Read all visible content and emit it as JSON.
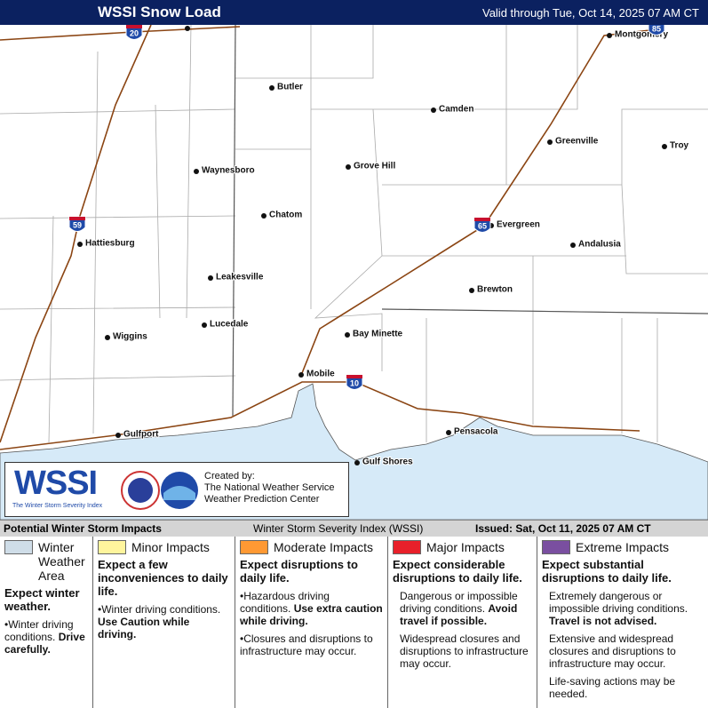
{
  "header": {
    "title": "WSSI Snow Load",
    "valid": "Valid through Tue, Oct 14, 2025 07 AM CT"
  },
  "map": {
    "cities": [
      "Montgomery",
      "Butler",
      "Camden",
      "Greenville",
      "Troy",
      "Waynesboro",
      "Grove Hill",
      "Chatom",
      "Evergreen",
      "Hattiesburg",
      "Andalusia",
      "Leakesville",
      "Brewton",
      "Lucedale",
      "Bay Minette",
      "Wiggins",
      "Mobile",
      "Gulfport",
      "Pensacola",
      "Gulf Shores"
    ],
    "shields": [
      "20",
      "59",
      "65",
      "10",
      "85"
    ]
  },
  "logo": {
    "mark": "WSSI",
    "subtitle": "The Winter Storm Severity Index",
    "credit": [
      "Created by:",
      "The National Weather Service",
      "Weather Prediction Center"
    ]
  },
  "footer": {
    "left": "Potential Winter Storm Impacts",
    "center": "Winter Storm Severity Index (WSSI)",
    "issued": "Issued: Sat, Oct 11, 2025 07 AM CT"
  },
  "legend": [
    {
      "title": "Winter Weather Area",
      "color": "#cfdde8",
      "summary": "Expect winter weather.",
      "bullets": true,
      "items": [
        {
          "text": "Winter driving conditions.",
          "strong": "Drive carefully."
        }
      ]
    },
    {
      "title": "Minor Impacts",
      "color": "#fff59d",
      "summary": "Expect a few inconveniences to daily life.",
      "bullets": true,
      "items": [
        {
          "text": "Winter driving conditions.",
          "strong": "Use Caution while driving."
        }
      ]
    },
    {
      "title": "Moderate Impacts",
      "color": "#ff9933",
      "summary": "Expect disruptions to daily life.",
      "bullets": true,
      "items": [
        {
          "text": "Hazardous driving conditions.",
          "strong": "Use extra caution while driving."
        },
        {
          "text": "Closures and disruptions to infrastructure may occur."
        }
      ]
    },
    {
      "title": "Major Impacts",
      "color": "#e8202a",
      "summary": "Expect considerable disruptions to daily life.",
      "bullets": false,
      "items": [
        {
          "text": "Dangerous or impossible driving conditions.",
          "strong": "Avoid travel if possible."
        },
        {
          "text": "Widespread closures and disruptions to infrastructure may occur."
        }
      ]
    },
    {
      "title": "Extreme Impacts",
      "color": "#7a4fa0",
      "summary": "Expect substantial disruptions to daily life.",
      "bullets": false,
      "items": [
        {
          "text": "Extremely dangerous or impossible driving conditions.",
          "strong": "Travel is not advised."
        },
        {
          "text": "Extensive and widespread closures and disruptions to infrastructure may occur."
        },
        {
          "text": "Life-saving actions may be needed."
        }
      ]
    }
  ]
}
